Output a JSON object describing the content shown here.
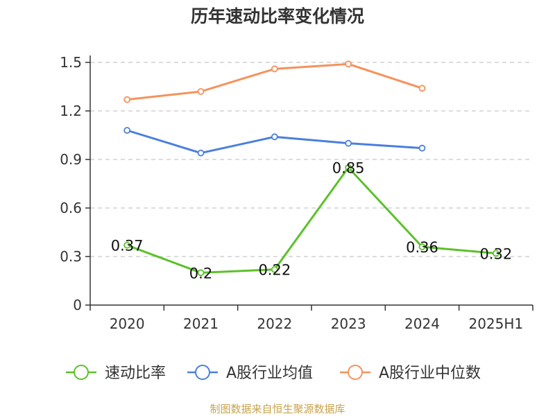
{
  "chart_data": {
    "type": "line",
    "title": "历年速动比率变化情况",
    "categories": [
      "2020",
      "2021",
      "2022",
      "2023",
      "2024",
      "2025H1"
    ],
    "y_ticks": [
      "0",
      "0.3",
      "0.6",
      "0.9",
      "1.2",
      "1.5"
    ],
    "ylim": [
      0,
      1.5
    ],
    "grid": true,
    "legend_position": "bottom",
    "series": [
      {
        "name": "速动比率",
        "color": "#5bc12a",
        "values": [
          0.37,
          0.2,
          0.22,
          0.85,
          0.36,
          0.32
        ],
        "labels": [
          "0.37",
          "0.2",
          "0.22",
          "0.85",
          "0.36",
          "0.32"
        ]
      },
      {
        "name": "A股行业均值",
        "color": "#4a7fdc",
        "values": [
          1.08,
          0.94,
          1.04,
          1.0,
          0.97,
          null
        ]
      },
      {
        "name": "A股行业中位数",
        "color": "#f5925b",
        "values": [
          1.27,
          1.32,
          1.46,
          1.49,
          1.34,
          null
        ]
      }
    ],
    "source": "制图数据来自恒生聚源数据库"
  },
  "colors": {
    "axis": "#333333",
    "grid": "#c8c8c8",
    "source_text": "#c8a24a"
  }
}
